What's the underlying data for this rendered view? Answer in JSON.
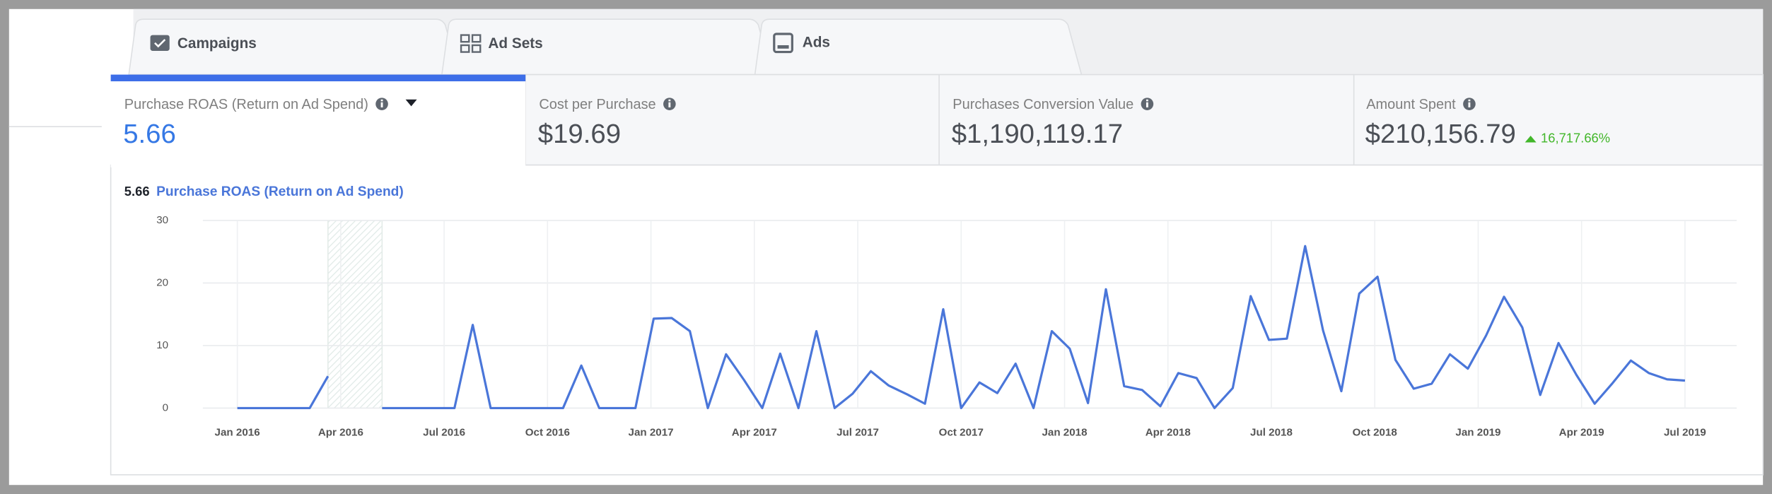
{
  "tabs": [
    "Campaigns",
    "Ad Sets",
    "Ads"
  ],
  "metrics": [
    {
      "label": "Purchase ROAS (Return on Ad Spend)",
      "value": "5.66"
    },
    {
      "label": "Cost per Purchase",
      "value": "$19.69"
    },
    {
      "label": "Purchases Conversion Value",
      "value": "$1,190,119.17"
    },
    {
      "label": "Amount Spent",
      "value": "$210,156.79",
      "change": "16,717.66%"
    }
  ],
  "chart_data": {
    "type": "line",
    "series": [
      {
        "name": "Purchase ROAS (Return on Ad Spend)",
        "color": "#4a76d9",
        "values": [
          0,
          0,
          0,
          0,
          0,
          5.1,
          null,
          null,
          0,
          0,
          0,
          0,
          0,
          13.3,
          0,
          0,
          0,
          0,
          0,
          6.8,
          0,
          0,
          0,
          14.3,
          14.4,
          12.3,
          0,
          8.6,
          4.5,
          0,
          8.7,
          0,
          12.3,
          0,
          2.3,
          5.9,
          3.6,
          2.2,
          0.7,
          15.8,
          0,
          4.1,
          2.4,
          7.1,
          0,
          12.3,
          9.5,
          0.8,
          19.0,
          3.5,
          2.9,
          0.3,
          5.6,
          4.8,
          0,
          3.2,
          17.9,
          10.9,
          11.1,
          25.9,
          12.4,
          2.7,
          18.3,
          21.0,
          7.7,
          3.1,
          3.9,
          8.6,
          6.3,
          11.6,
          17.8,
          12.9,
          2.1,
          10.4,
          5.3,
          0.7,
          4.0,
          7.6,
          5.6,
          4.6,
          4.4
        ]
      }
    ],
    "x": [
      0,
      0.53,
      1.05,
      1.58,
      2.1,
      2.63,
      3.15,
      3.68,
      4.2,
      4.73,
      5.25,
      5.78,
      6.3,
      6.83,
      7.35,
      7.88,
      8.4,
      8.93,
      9.45,
      9.98,
      10.5,
      11.03,
      11.55,
      12.08,
      12.6,
      13.13,
      13.65,
      14.18,
      14.7,
      15.23,
      15.75,
      16.28,
      16.8,
      17.33,
      17.85,
      18.38,
      18.9,
      19.43,
      19.95,
      20.48,
      21,
      21.53,
      22.05,
      22.58,
      23.1,
      23.63,
      24.15,
      24.68,
      25.2,
      25.73,
      26.25,
      26.78,
      27.3,
      27.83,
      28.35,
      28.88,
      29.4,
      29.93,
      30.45,
      30.98,
      31.5,
      32.03,
      32.55,
      33.08,
      33.6,
      34.13,
      34.65,
      35.18,
      35.7,
      36.23,
      36.75,
      37.28,
      37.8,
      38.33,
      38.85,
      39.38,
      39.9,
      40.43,
      40.95,
      41.48,
      42
    ],
    "xlim": [
      -1,
      43.5
    ],
    "xticks": [
      {
        "value": 0,
        "label": "Jan 2016"
      },
      {
        "value": 3,
        "label": "Apr 2016"
      },
      {
        "value": 6,
        "label": "Jul 2016"
      },
      {
        "value": 9,
        "label": "Oct 2016"
      },
      {
        "value": 12,
        "label": "Jan 2017"
      },
      {
        "value": 15,
        "label": "Apr 2017"
      },
      {
        "value": 18,
        "label": "Jul 2017"
      },
      {
        "value": 21,
        "label": "Oct 2017"
      },
      {
        "value": 24,
        "label": "Jan 2018"
      },
      {
        "value": 27,
        "label": "Apr 2018"
      },
      {
        "value": 30,
        "label": "Jul 2018"
      },
      {
        "value": 33,
        "label": "Oct 2018"
      },
      {
        "value": 36,
        "label": "Jan 2019"
      },
      {
        "value": 39,
        "label": "Apr 2019"
      },
      {
        "value": 42,
        "label": "Jul 2019"
      }
    ],
    "ylim": [
      0,
      30
    ],
    "yticks": [
      0,
      10,
      20,
      30
    ],
    "grid": true
  }
}
